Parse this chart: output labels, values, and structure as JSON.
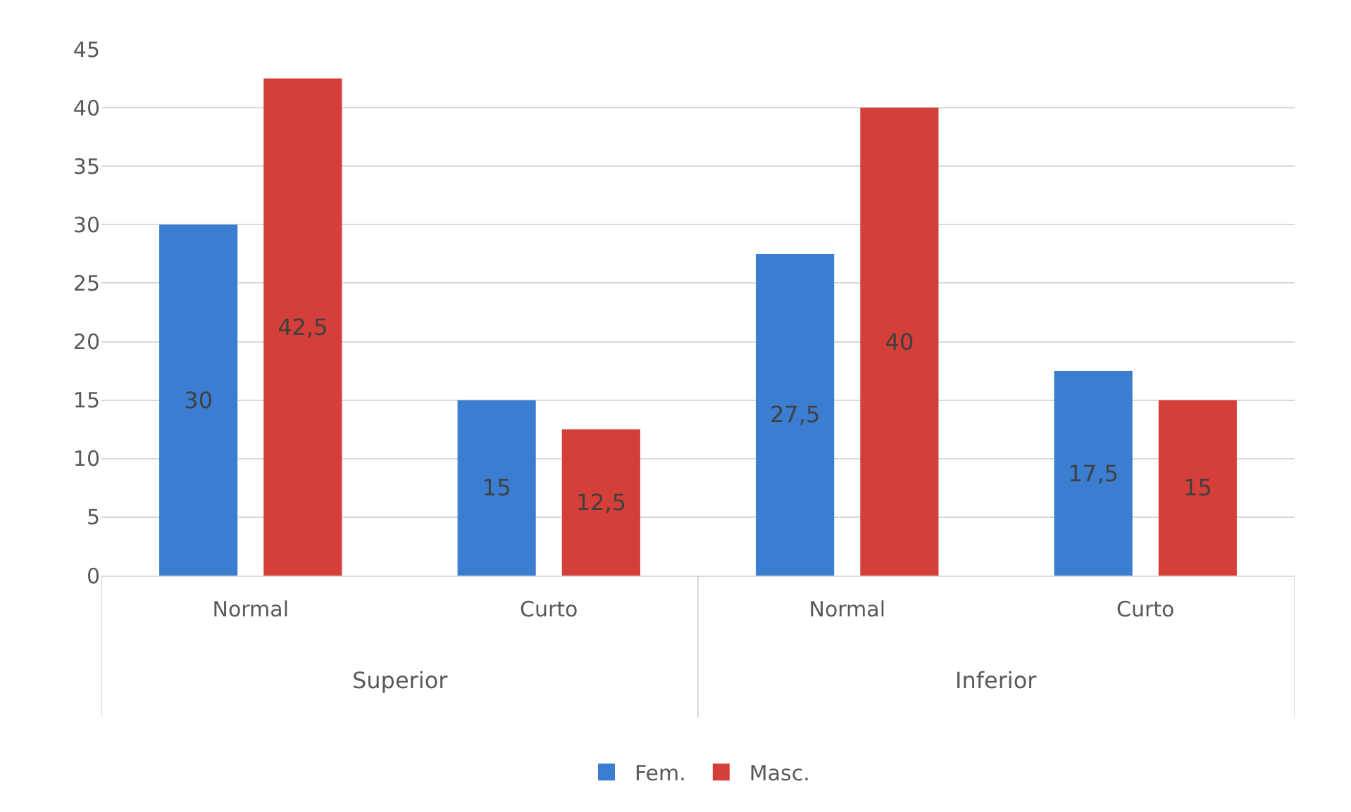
{
  "chart_data": {
    "type": "bar",
    "categories": [
      "Normal",
      "Curto",
      "Normal",
      "Curto"
    ],
    "series": [
      {
        "name": "Fem.",
        "color": "#3b7dd0",
        "values": [
          30,
          15,
          27.5,
          17.5
        ],
        "value_labels": [
          "30",
          "15",
          "27,5",
          "17,5"
        ]
      },
      {
        "name": "Masc.",
        "color": "#d43f3a",
        "values": [
          42.5,
          12.5,
          40,
          15
        ],
        "value_labels": [
          "42,5",
          "12,5",
          "40",
          "15"
        ]
      }
    ],
    "annotations": [
      "Superior",
      "Inferior"
    ],
    "ylim": [
      0,
      45
    ],
    "yticks": [
      0,
      5,
      10,
      15,
      20,
      25,
      30,
      35,
      40,
      45
    ],
    "grid": "y",
    "legend": "bottom"
  }
}
